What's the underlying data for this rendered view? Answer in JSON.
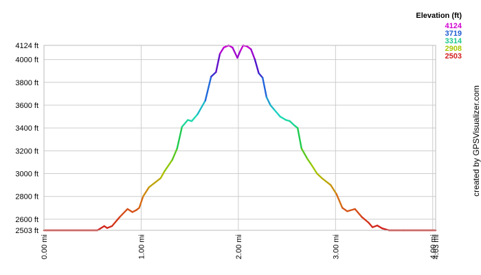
{
  "credit": "created by GPSVisualizer.com",
  "legend": {
    "title": "Elevation (ft)",
    "entries": [
      {
        "label": "4124",
        "color": "#d000d0"
      },
      {
        "label": "3719",
        "color": "#1e5ad2"
      },
      {
        "label": "3314",
        "color": "#1ec88c"
      },
      {
        "label": "2908",
        "color": "#a8c800"
      },
      {
        "label": "2503",
        "color": "#d21e1e"
      }
    ]
  },
  "chart_data": {
    "type": "line",
    "title": "",
    "xlabel": "",
    "ylabel": "",
    "xlim": [
      0,
      4.03
    ],
    "ylim": [
      2503,
      4124
    ],
    "grid": true,
    "x_ticks": [
      "0.00 mi",
      "1.00 mi",
      "2.00 mi",
      "3.00 mi",
      "4.00 mi",
      "4.03 mi"
    ],
    "x_tick_values": [
      0,
      1,
      2,
      3,
      4,
      4.03
    ],
    "y_ticks": [
      "2503 ft",
      "2600 ft",
      "2800 ft",
      "3000 ft",
      "3200 ft",
      "3400 ft",
      "3600 ft",
      "3800 ft",
      "4000 ft",
      "4124 ft"
    ],
    "y_tick_values": [
      2503,
      2600,
      2800,
      3000,
      3200,
      3400,
      3600,
      3800,
      4000,
      4124
    ],
    "series": [
      {
        "x": [
          0,
          0.55,
          0.62,
          0.65,
          0.7,
          0.78,
          0.86,
          0.91,
          0.95,
          0.98,
          1.02,
          1.08,
          1.2,
          1.24,
          1.32,
          1.37,
          1.42,
          1.48,
          1.52,
          1.58,
          1.66,
          1.72,
          1.77,
          1.81,
          1.85,
          1.9,
          1.94,
          1.99,
          2.02,
          2.05,
          2.09,
          2.13,
          2.17,
          2.21,
          2.25,
          2.29,
          2.33,
          2.37,
          2.43,
          2.49,
          2.53,
          2.58,
          2.61,
          2.65,
          2.71,
          2.75,
          2.81,
          2.86,
          2.92,
          2.95,
          3.01,
          3.07,
          3.12,
          3.2,
          3.27,
          3.34,
          3.38,
          3.43,
          3.48,
          3.55,
          3.7,
          4.03
        ],
        "y": [
          2503,
          2503,
          2540,
          2523,
          2540,
          2620,
          2690,
          2663,
          2680,
          2700,
          2800,
          2880,
          2960,
          3020,
          3120,
          3220,
          3410,
          3470,
          3460,
          3520,
          3640,
          3850,
          3890,
          4050,
          4105,
          4124,
          4105,
          4015,
          4075,
          4124,
          4115,
          4090,
          4000,
          3880,
          3840,
          3670,
          3600,
          3560,
          3500,
          3470,
          3460,
          3420,
          3400,
          3220,
          3130,
          3080,
          3000,
          2960,
          2920,
          2900,
          2820,
          2700,
          2670,
          2690,
          2620,
          2570,
          2530,
          2545,
          2520,
          2503,
          2503,
          2503
        ]
      }
    ]
  }
}
